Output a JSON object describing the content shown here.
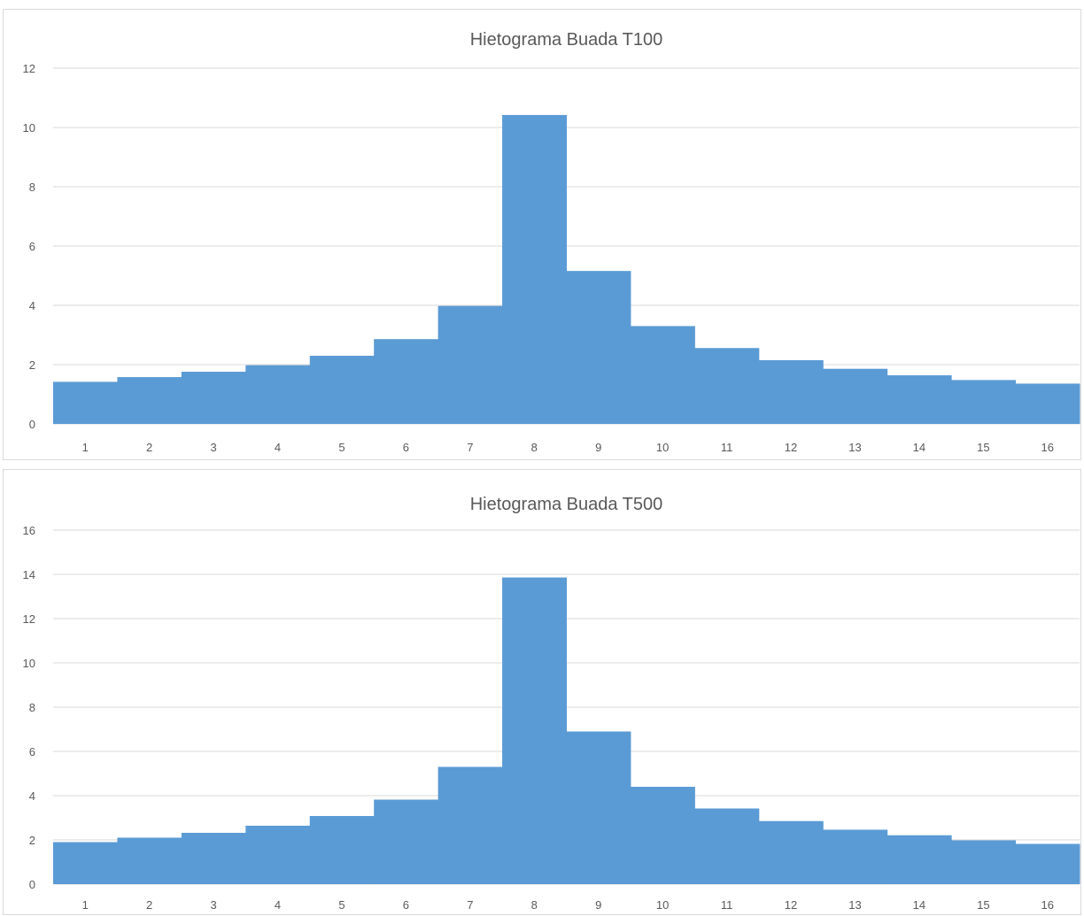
{
  "chart_data": [
    {
      "type": "bar",
      "title": "Hietograma Buada T100",
      "xlabel": "",
      "ylabel": "",
      "categories": [
        "1",
        "2",
        "3",
        "4",
        "5",
        "6",
        "7",
        "8",
        "9",
        "10",
        "11",
        "12",
        "13",
        "14",
        "15",
        "16"
      ],
      "values": [
        1.42,
        1.58,
        1.76,
        1.98,
        2.3,
        2.86,
        3.98,
        10.42,
        5.16,
        3.3,
        2.56,
        2.15,
        1.86,
        1.64,
        1.48,
        1.36
      ],
      "yticks": [
        0,
        2,
        4,
        6,
        8,
        10,
        12
      ],
      "ylim": [
        0,
        12
      ],
      "grid": true,
      "bar_gap": 0,
      "color": "#5b9bd5"
    },
    {
      "type": "bar",
      "title": "Hietograma Buada T500",
      "xlabel": "",
      "ylabel": "",
      "categories": [
        "1",
        "2",
        "3",
        "4",
        "5",
        "6",
        "7",
        "8",
        "9",
        "10",
        "11",
        "12",
        "13",
        "14",
        "15",
        "16"
      ],
      "values": [
        1.9,
        2.1,
        2.32,
        2.64,
        3.08,
        3.82,
        5.3,
        13.86,
        6.9,
        4.4,
        3.42,
        2.85,
        2.46,
        2.21,
        1.98,
        1.82
      ],
      "yticks": [
        0,
        2,
        4,
        6,
        8,
        10,
        12,
        14,
        16
      ],
      "ylim": [
        0,
        16
      ],
      "grid": true,
      "bar_gap": 0,
      "color": "#5b9bd5"
    }
  ]
}
